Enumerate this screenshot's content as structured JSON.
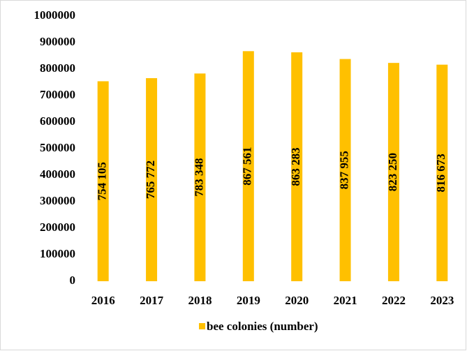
{
  "chart_data": {
    "type": "bar",
    "categories": [
      "2016",
      "2017",
      "2018",
      "2019",
      "2020",
      "2021",
      "2022",
      "2023"
    ],
    "series": [
      {
        "name": "bee colonies (number)",
        "color": "#ffc000",
        "values": [
          754105,
          765772,
          783348,
          867561,
          863283,
          837955,
          823250,
          816673
        ],
        "value_labels": [
          "754 105",
          "765 772",
          "783 348",
          "867 561",
          "863 283",
          "837 955",
          "823 250",
          "816 673"
        ]
      }
    ],
    "ylim": [
      0,
      1000000
    ],
    "yticks": [
      0,
      100000,
      200000,
      300000,
      400000,
      500000,
      600000,
      700000,
      800000,
      900000,
      1000000
    ],
    "grid": false,
    "legend": "bottom"
  }
}
